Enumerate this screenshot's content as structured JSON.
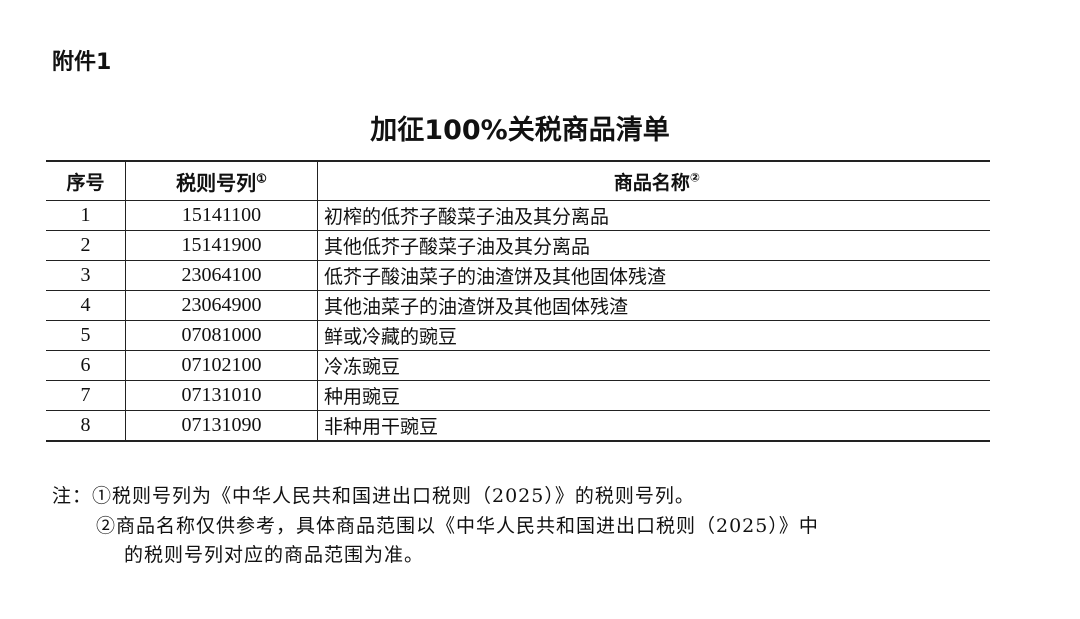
{
  "attachment_label": "附件1",
  "title": "加征100%关税商品清单",
  "table": {
    "headers": [
      "序号",
      "税则号列",
      "商品名称"
    ],
    "header_marks": [
      "①",
      "②"
    ],
    "rows": [
      [
        "1",
        "15141100",
        "初榨的低芥子酸菜子油及其分离品"
      ],
      [
        "2",
        "15141900",
        "其他低芥子酸菜子油及其分离品"
      ],
      [
        "3",
        "23064100",
        "低芥子酸油菜子的油渣饼及其他固体残渣"
      ],
      [
        "4",
        "23064900",
        "其他油菜子的油渣饼及其他固体残渣"
      ],
      [
        "5",
        "07081000",
        "鲜或冷藏的豌豆"
      ],
      [
        "6",
        "07102100",
        "冷冻豌豆"
      ],
      [
        "7",
        "07131010",
        "种用豌豆"
      ],
      [
        "8",
        "07131090",
        "非种用干豌豆"
      ]
    ]
  },
  "notes": {
    "line1": "注：①税则号列为《中华人民共和国进出口税则（2025）》的税则号列。",
    "line2": "②商品名称仅供参考，具体商品范围以《中华人民共和国进出口税则（2025）》中",
    "line3": "的税则号列对应的商品范围为准。"
  }
}
